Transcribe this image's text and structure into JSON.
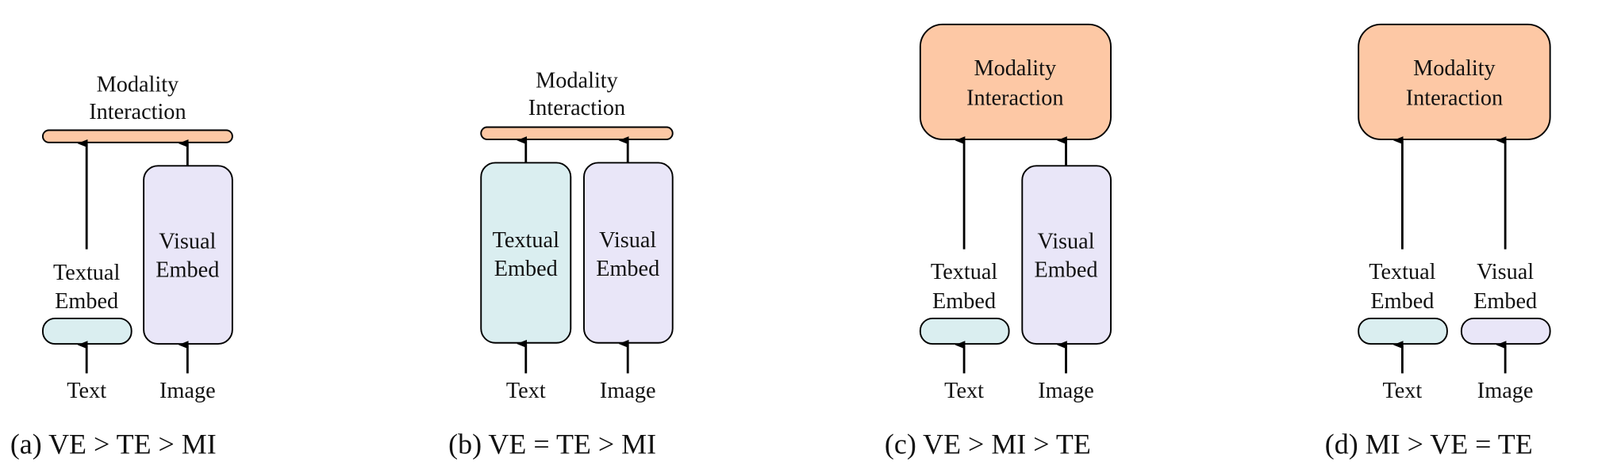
{
  "colors": {
    "modality_interaction": "#FDC8A5",
    "textual_embed": "#DAEEF0",
    "visual_embed": "#E9E6F8"
  },
  "labels": {
    "modality": "Modality",
    "interaction": "Interaction",
    "textual": "Textual",
    "visual": "Visual",
    "embed": "Embed",
    "text_input": "Text",
    "image_input": "Image"
  },
  "panels": [
    {
      "caption": "(a) VE > TE > MI"
    },
    {
      "caption": "(b) VE = TE > MI"
    },
    {
      "caption": "(c) VE > MI > TE"
    },
    {
      "caption": "(d) MI > VE = TE"
    }
  ]
}
